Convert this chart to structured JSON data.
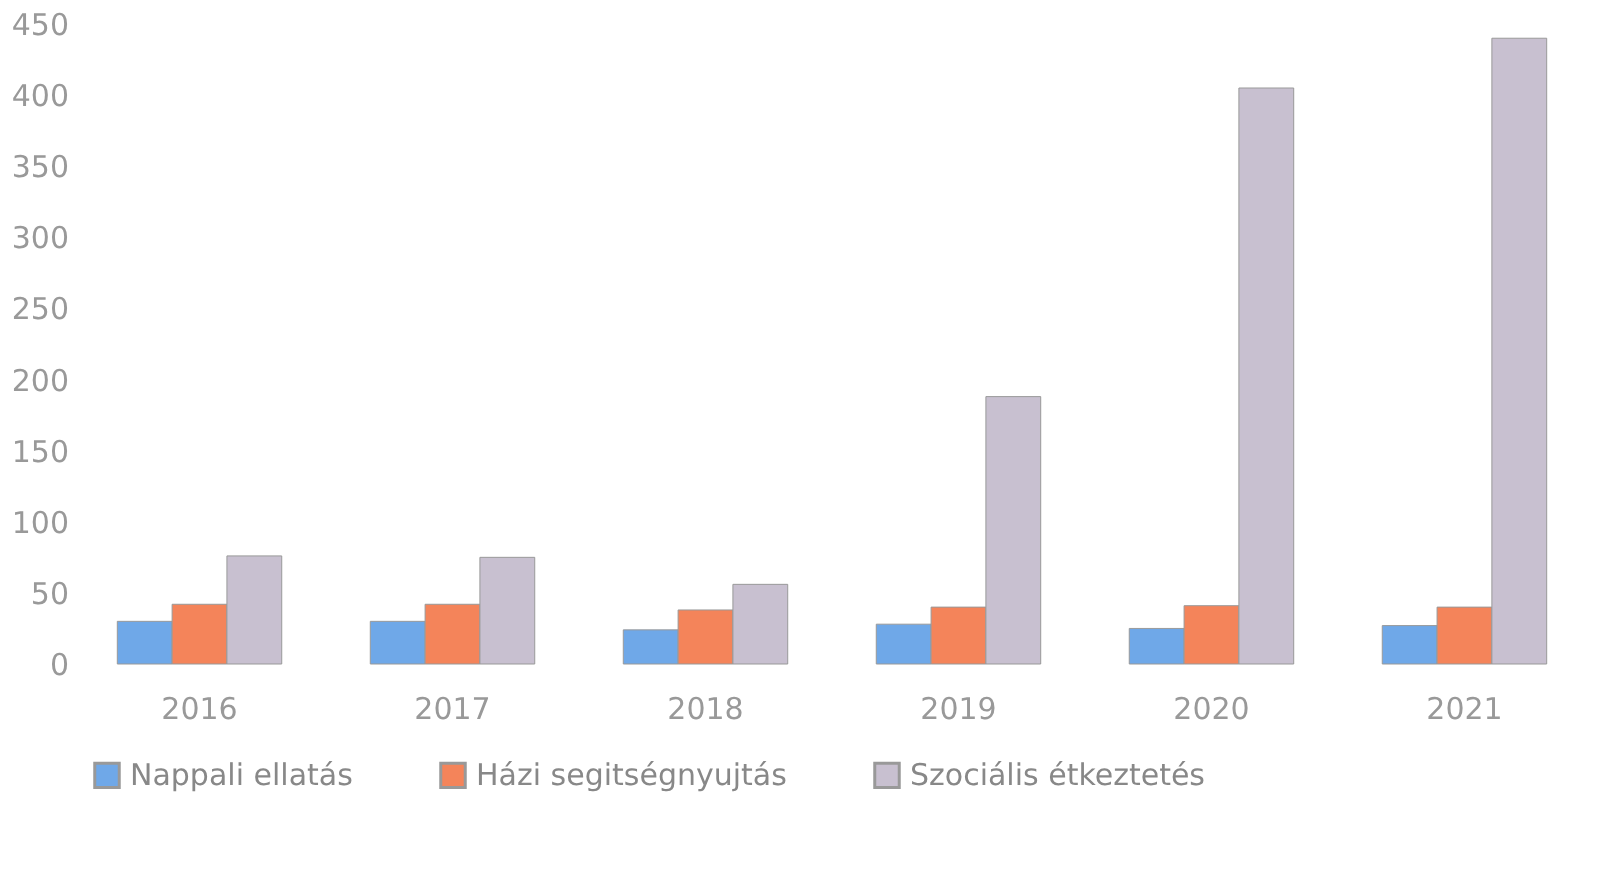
{
  "chart_data": {
    "type": "bar",
    "categories": [
      "2016",
      "2017",
      "2018",
      "2019",
      "2020",
      "2021"
    ],
    "series": [
      {
        "name": "Nappali ellatás",
        "color": "#6fa8e8",
        "values": [
          30,
          30,
          24,
          28,
          25,
          27
        ]
      },
      {
        "name": "Házi segitségnyujtás",
        "color": "#f4845a",
        "values": [
          42,
          42,
          38,
          40,
          41,
          40
        ]
      },
      {
        "name": "Szociális étkeztetés",
        "color": "#c8c0d0",
        "values": [
          76,
          75,
          56,
          188,
          405,
          440
        ]
      }
    ],
    "ylim": [
      0,
      450
    ],
    "yticks": [
      0,
      50,
      100,
      150,
      200,
      250,
      300,
      350,
      400,
      450
    ],
    "grid": false,
    "legend": "bottom"
  }
}
